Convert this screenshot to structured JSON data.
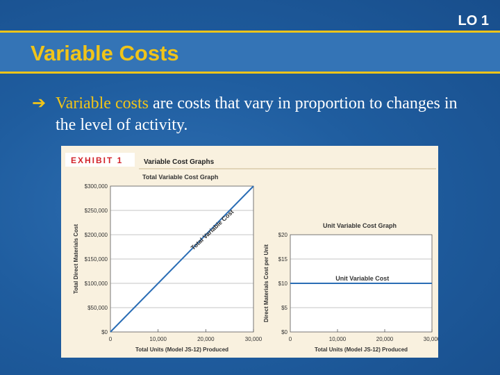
{
  "slide": {
    "lo_label": "LO 1",
    "title": "Variable Costs",
    "bullet_icon": "arrow-right-icon",
    "bullet_term": "Variable costs",
    "bullet_rest": " are costs that vary in proportion to changes in the level of activity."
  },
  "exhibit": {
    "badge": "EXHIBIT 1",
    "heading": "Variable Cost Graphs"
  },
  "chart_data": [
    {
      "type": "line",
      "title": "Total Variable Cost Graph",
      "xlabel": "Total Units (Model JS-12) Produced",
      "ylabel": "Total Direct Materials Cost",
      "x_ticks": [
        "0",
        "10,000",
        "20,000",
        "30,000"
      ],
      "y_ticks": [
        "$0",
        "$50,000",
        "$100,000",
        "$150,000",
        "$200,000",
        "$250,000",
        "$300,000"
      ],
      "xlim": [
        0,
        30000
      ],
      "ylim": [
        0,
        300000
      ],
      "series": [
        {
          "name": "Total Variable Cost",
          "x": [
            0,
            30000
          ],
          "y": [
            0,
            300000
          ]
        }
      ],
      "grid": true
    },
    {
      "type": "line",
      "title": "Unit Variable Cost Graph",
      "xlabel": "Total Units (Model JS-12) Produced",
      "ylabel": "Direct Materials Cost per Unit",
      "x_ticks": [
        "0",
        "10,000",
        "20,000",
        "30,000"
      ],
      "y_ticks": [
        "$0",
        "$5",
        "$10",
        "$15",
        "$20"
      ],
      "xlim": [
        0,
        30000
      ],
      "ylim": [
        0,
        20
      ],
      "series": [
        {
          "name": "Unit Variable Cost",
          "x": [
            0,
            30000
          ],
          "y": [
            10,
            10
          ]
        }
      ],
      "grid": true
    }
  ],
  "colors": {
    "accent": "#f0c419",
    "series_line": "#2a6db5",
    "badge_text": "#d2232a"
  }
}
